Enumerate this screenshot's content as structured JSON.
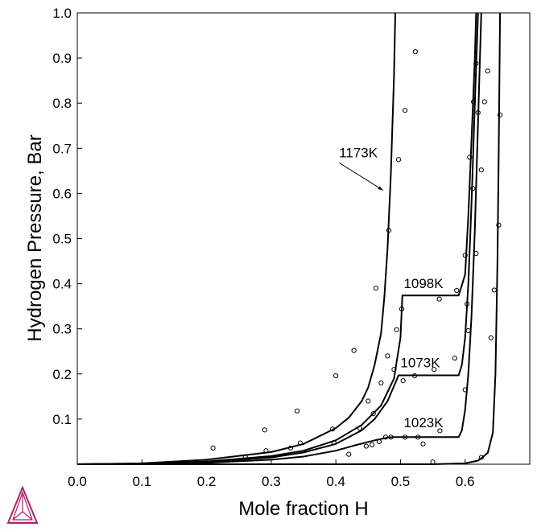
{
  "chart_data": {
    "type": "line",
    "title": "",
    "xlabel": "Mole fraction H",
    "ylabel": "Hydrogen Pressure, Bar",
    "xlim": [
      0.0,
      0.7
    ],
    "ylim": [
      0.0,
      1.0
    ],
    "grid": false,
    "x_ticks": [
      "0.0",
      "0.1",
      "0.2",
      "0.3",
      "0.4",
      "0.5",
      "0.6"
    ],
    "y_ticks": [
      "0.1",
      "0.2",
      "0.3",
      "0.4",
      "0.5",
      "0.6",
      "0.7",
      "0.8",
      "0.9",
      "1.0"
    ],
    "series": [
      {
        "name": "1173K",
        "line": [
          [
            0.0,
            0.0
          ],
          [
            0.1,
            0.002
          ],
          [
            0.2,
            0.01
          ],
          [
            0.3,
            0.027
          ],
          [
            0.35,
            0.045
          ],
          [
            0.4,
            0.08
          ],
          [
            0.42,
            0.103
          ],
          [
            0.44,
            0.14
          ],
          [
            0.45,
            0.17
          ],
          [
            0.46,
            0.22
          ],
          [
            0.47,
            0.29
          ],
          [
            0.475,
            0.37
          ],
          [
            0.48,
            0.48
          ],
          [
            0.485,
            0.64
          ],
          [
            0.49,
            0.86
          ],
          [
            0.492,
            1.0
          ]
        ]
      },
      {
        "name": "1098K",
        "line": [
          [
            0.0,
            0.0
          ],
          [
            0.1,
            0.001
          ],
          [
            0.2,
            0.006
          ],
          [
            0.3,
            0.018
          ],
          [
            0.35,
            0.03
          ],
          [
            0.4,
            0.053
          ],
          [
            0.44,
            0.087
          ],
          [
            0.47,
            0.13
          ],
          [
            0.49,
            0.19
          ],
          [
            0.5,
            0.28
          ],
          [
            0.503,
            0.374
          ],
          [
            0.59,
            0.374
          ],
          [
            0.6,
            0.42
          ],
          [
            0.605,
            0.55
          ],
          [
            0.61,
            0.72
          ],
          [
            0.615,
            0.9
          ],
          [
            0.617,
            1.0
          ]
        ]
      },
      {
        "name": "1073K",
        "line": [
          [
            0.0,
            0.0
          ],
          [
            0.1,
            0.001
          ],
          [
            0.2,
            0.005
          ],
          [
            0.3,
            0.015
          ],
          [
            0.35,
            0.026
          ],
          [
            0.4,
            0.045
          ],
          [
            0.44,
            0.075
          ],
          [
            0.46,
            0.1
          ],
          [
            0.48,
            0.14
          ],
          [
            0.492,
            0.18
          ],
          [
            0.497,
            0.197
          ],
          [
            0.59,
            0.197
          ],
          [
            0.595,
            0.22
          ],
          [
            0.6,
            0.28
          ],
          [
            0.605,
            0.4
          ],
          [
            0.61,
            0.58
          ],
          [
            0.615,
            0.8
          ],
          [
            0.62,
            1.0
          ]
        ]
      },
      {
        "name": "1023K",
        "line": [
          [
            0.0,
            0.0
          ],
          [
            0.1,
            0.0005
          ],
          [
            0.2,
            0.003
          ],
          [
            0.3,
            0.01
          ],
          [
            0.35,
            0.017
          ],
          [
            0.4,
            0.03
          ],
          [
            0.43,
            0.042
          ],
          [
            0.46,
            0.053
          ],
          [
            0.48,
            0.059
          ],
          [
            0.49,
            0.06
          ],
          [
            0.59,
            0.06
          ],
          [
            0.595,
            0.075
          ],
          [
            0.6,
            0.12
          ],
          [
            0.605,
            0.2
          ],
          [
            0.61,
            0.33
          ],
          [
            0.615,
            0.52
          ],
          [
            0.62,
            0.76
          ],
          [
            0.625,
            1.0
          ]
        ]
      },
      {
        "name": "",
        "line": [
          [
            0.0,
            0.0
          ],
          [
            0.3,
            0.0
          ],
          [
            0.55,
            0.0
          ],
          [
            0.6,
            0.002
          ],
          [
            0.62,
            0.008
          ],
          [
            0.635,
            0.025
          ],
          [
            0.643,
            0.07
          ],
          [
            0.647,
            0.2
          ],
          [
            0.65,
            0.45
          ],
          [
            0.652,
            0.7
          ],
          [
            0.654,
            1.0
          ]
        ]
      }
    ],
    "points": [
      [
        0.21,
        0.036
      ],
      [
        0.26,
        0.016
      ],
      [
        0.29,
        0.076
      ],
      [
        0.292,
        0.03
      ],
      [
        0.33,
        0.036
      ],
      [
        0.34,
        0.118
      ],
      [
        0.345,
        0.047
      ],
      [
        0.395,
        0.078
      ],
      [
        0.397,
        0.048
      ],
      [
        0.4,
        0.196
      ],
      [
        0.42,
        0.022
      ],
      [
        0.428,
        0.252
      ],
      [
        0.437,
        0.08
      ],
      [
        0.447,
        0.04
      ],
      [
        0.45,
        0.14
      ],
      [
        0.456,
        0.043
      ],
      [
        0.458,
        0.112
      ],
      [
        0.462,
        0.39
      ],
      [
        0.467,
        0.05
      ],
      [
        0.47,
        0.18
      ],
      [
        0.477,
        0.06
      ],
      [
        0.48,
        0.24
      ],
      [
        0.482,
        0.518
      ],
      [
        0.485,
        0.06
      ],
      [
        0.49,
        0.21
      ],
      [
        0.494,
        0.298
      ],
      [
        0.497,
        0.675
      ],
      [
        0.502,
        0.344
      ],
      [
        0.504,
        0.185
      ],
      [
        0.507,
        0.784
      ],
      [
        0.507,
        0.06
      ],
      [
        0.522,
        0.196
      ],
      [
        0.523,
        0.914
      ],
      [
        0.527,
        0.06
      ],
      [
        0.535,
        0.045
      ],
      [
        0.55,
        0.005
      ],
      [
        0.552,
        0.21
      ],
      [
        0.56,
        0.366
      ],
      [
        0.561,
        0.074
      ],
      [
        0.584,
        0.235
      ],
      [
        0.587,
        0.385
      ],
      [
        0.6,
        0.463
      ],
      [
        0.6,
        0.165
      ],
      [
        0.603,
        0.355
      ],
      [
        0.605,
        0.296
      ],
      [
        0.607,
        0.68
      ],
      [
        0.612,
        0.611
      ],
      [
        0.613,
        0.803
      ],
      [
        0.617,
        0.888
      ],
      [
        0.617,
        0.467
      ],
      [
        0.62,
        0.779
      ],
      [
        0.625,
        0.652
      ],
      [
        0.625,
        0.015
      ],
      [
        0.63,
        0.803
      ],
      [
        0.635,
        0.871
      ],
      [
        0.64,
        0.28
      ],
      [
        0.645,
        0.386
      ],
      [
        0.652,
        0.53
      ],
      [
        0.654,
        0.774
      ]
    ],
    "labels": [
      {
        "text": "1173K",
        "x": 0.405,
        "y": 0.68
      },
      {
        "text": "1098K",
        "x": 0.505,
        "y": 0.39
      },
      {
        "text": "1073K",
        "x": 0.5,
        "y": 0.215
      },
      {
        "text": "1023K",
        "x": 0.505,
        "y": 0.082
      }
    ],
    "arrow": {
      "from": [
        0.405,
        0.668
      ],
      "to": [
        0.473,
        0.607
      ]
    },
    "colors": {
      "line": "#000000",
      "logo": "#b0206a"
    }
  }
}
